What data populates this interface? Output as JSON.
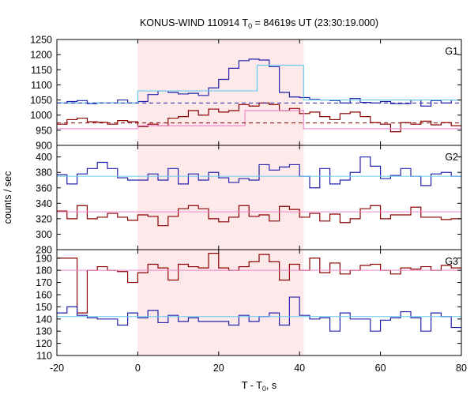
{
  "chart_data": {
    "type": "line",
    "title": "KONUS-WIND 110914 T",
    "title_sub": "0",
    "title_rest": " = 84619s UT (23:30:19.000)",
    "xlabel": "T - T",
    "xlabel_sub": "0",
    "xlabel_rest": ", s",
    "ylabel": "counts / sec",
    "xlim": [
      -20,
      80
    ],
    "x_ticks": [
      -20,
      0,
      20,
      40,
      60,
      80
    ],
    "shaded_interval": [
      0,
      41
    ],
    "colors": {
      "dark_red": "#8b0000",
      "dark_blue": "#2222aa",
      "cyan": "#66ccee",
      "pink": "#ee88cc",
      "shade": "#fde8ea"
    },
    "panels": [
      {
        "label": "G1",
        "ylim": [
          900,
          1250
        ],
        "yticks": [
          900,
          950,
          1000,
          1050,
          1100,
          1150,
          1200,
          1250
        ],
        "series": [
          {
            "color": "dark_blue",
            "style": "step",
            "x_start": -20,
            "x_step": 2.5,
            "values": [
              1040,
              1045,
              1048,
              1038,
              1040,
              1040,
              1050,
              1040,
              1045,
              1068,
              1080,
              1075,
              1070,
              1072,
              1065,
              1090,
              1118,
              1155,
              1180,
              1185,
              1182,
              1160,
              1075,
              1060,
              1058,
              1052,
              1050,
              1048,
              1040,
              1055,
              1042,
              1040,
              1045,
              1038,
              1038,
              1050,
              1030,
              1048,
              1040,
              1050
            ]
          },
          {
            "color": "dark_red",
            "style": "step",
            "x_start": -20,
            "x_step": 2.5,
            "values": [
              970,
              985,
              990,
              978,
              976,
              970,
              982,
              978,
              962,
              970,
              965,
              990,
              995,
              1015,
              1000,
              1020,
              1010,
              1015,
              1035,
              1030,
              1040,
              1035,
              1015,
              1022,
              1005,
              1010,
              995,
              985,
              1005,
              1010,
              995,
              975,
              970,
              945,
              975,
              970,
              980,
              968,
              975,
              965
            ]
          },
          {
            "color": "cyan",
            "style": "step",
            "x": [
              -20,
              0,
              29.5,
              41
            ],
            "values": [
              1040,
              1080,
              1165,
              1050
            ],
            "x_end": 80
          },
          {
            "color": "pink",
            "style": "step",
            "x": [
              -20,
              0,
              26.5,
              41
            ],
            "values": [
              955,
              965,
              1015,
              955
            ],
            "x_end": 80
          },
          {
            "color": "dark_blue",
            "style": "dashed",
            "value": 1040
          },
          {
            "color": "dark_red",
            "style": "dashed",
            "value": 974
          }
        ]
      },
      {
        "label": "G2",
        "ylim": [
          280,
          415
        ],
        "yticks": [
          280,
          300,
          320,
          340,
          360,
          380,
          400
        ],
        "series": [
          {
            "color": "dark_blue",
            "style": "step",
            "x_start": -20,
            "x_step": 2.5,
            "values": [
              377,
              365,
              378,
              385,
              393,
              385,
              373,
              370,
              370,
              378,
              370,
              385,
              365,
              378,
              370,
              380,
              373,
              367,
              372,
              370,
              390,
              383,
              387,
              390,
              375,
              360,
              385,
              365,
              370,
              380,
              400,
              388,
              372,
              376,
              385,
              375,
              363,
              378,
              380,
              375
            ]
          },
          {
            "color": "dark_red",
            "style": "step",
            "x_start": -20,
            "x_step": 2.5,
            "values": [
              330,
              320,
              337,
              320,
              322,
              327,
              322,
              318,
              325,
              323,
              311,
              323,
              333,
              337,
              333,
              320,
              316,
              322,
              337,
              323,
              325,
              317,
              336,
              332,
              322,
              327,
              317,
              326,
              315,
              320,
              333,
              337,
              320,
              325,
              325,
              335,
              322,
              322,
              319,
              320
            ]
          },
          {
            "color": "cyan",
            "style": "flat",
            "value": 375
          },
          {
            "color": "pink",
            "style": "flat",
            "value": 329
          }
        ]
      },
      {
        "label": "G3",
        "ylim": [
          110,
          197
        ],
        "yticks": [
          110,
          120,
          130,
          140,
          150,
          160,
          170,
          180,
          190
        ],
        "series": [
          {
            "color": "dark_red",
            "style": "step",
            "x_start": -20,
            "x_step": 2.5,
            "values": [
              190,
              190,
              145,
              180,
              183,
              180,
              179,
              170,
              178,
              185,
              182,
              172,
              185,
              183,
              182,
              194,
              182,
              180,
              183,
              187,
              193,
              187,
              172,
              185,
              180,
              190,
              178,
              186,
              177,
              180,
              184,
              185,
              180,
              177,
              182,
              181,
              183,
              180,
              184,
              182
            ]
          },
          {
            "color": "dark_blue",
            "style": "step",
            "x_start": -20,
            "x_step": 2.5,
            "values": [
              145,
              150,
              143,
              141,
              140,
              140,
              135,
              145,
              141,
              147,
              137,
              143,
              138,
              141,
              138,
              138,
              138,
              135,
              143,
              138,
              142,
              145,
              135,
              158,
              143,
              140,
              141,
              130,
              145,
              140,
              140,
              130,
              139,
              141,
              146,
              141,
              130,
              145,
              142,
              133
            ]
          },
          {
            "color": "cyan",
            "style": "flat",
            "value": 142
          },
          {
            "color": "pink",
            "style": "flat",
            "value": 180
          }
        ]
      }
    ]
  }
}
